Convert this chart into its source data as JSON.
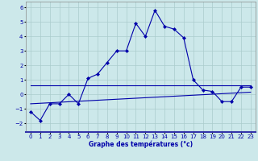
{
  "xlabel": "Graphe des températures (°c)",
  "background_color": "#cce8ea",
  "line_color": "#0000aa",
  "grid_color": "#aacccc",
  "xlim": [
    -0.5,
    23.5
  ],
  "ylim": [
    -2.6,
    6.4
  ],
  "xticks": [
    0,
    1,
    2,
    3,
    4,
    5,
    6,
    7,
    8,
    9,
    10,
    11,
    12,
    13,
    14,
    15,
    16,
    17,
    18,
    19,
    20,
    21,
    22,
    23
  ],
  "yticks": [
    -2,
    -1,
    0,
    1,
    2,
    3,
    4,
    5,
    6
  ],
  "temp_line": {
    "x": [
      0,
      1,
      2,
      3,
      4,
      5,
      6,
      7,
      8,
      9,
      10,
      11,
      12,
      13,
      14,
      15,
      16,
      17,
      18,
      19,
      20,
      21,
      22,
      23
    ],
    "y": [
      -1.2,
      -1.8,
      -0.65,
      -0.65,
      0.0,
      -0.65,
      1.1,
      1.4,
      2.2,
      3.0,
      3.0,
      4.9,
      4.0,
      5.8,
      4.7,
      4.5,
      3.9,
      1.0,
      0.3,
      0.2,
      -0.5,
      -0.5,
      0.5,
      0.5
    ]
  },
  "reg_line1": {
    "x": [
      0,
      23
    ],
    "y": [
      0.6,
      0.6
    ]
  },
  "reg_line2": {
    "x": [
      0,
      23
    ],
    "y": [
      -0.65,
      0.15
    ]
  },
  "xlabel_fontsize": 5.5,
  "tick_fontsize": 5.0,
  "line_width": 0.8,
  "marker_size": 2.2
}
